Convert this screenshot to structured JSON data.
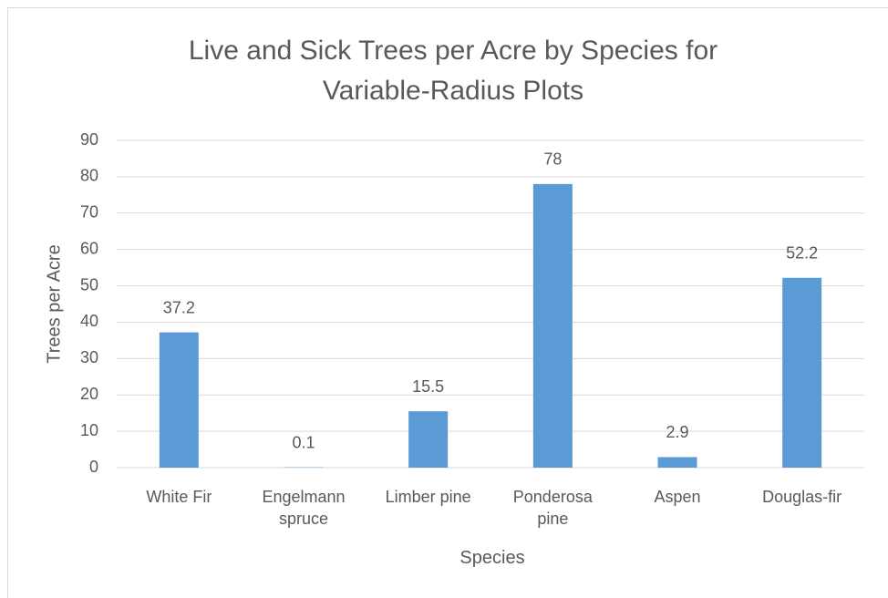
{
  "chart_data": {
    "type": "bar",
    "title": "Live and Sick Trees per Acre by Species for Variable-Radius Plots",
    "x_label": "Species",
    "y_label": "Trees per Acre",
    "categories": [
      "White Fir",
      "Engelmann spruce",
      "Limber pine",
      "Ponderosa pine",
      "Aspen",
      "Douglas-fir"
    ],
    "values": [
      37.2,
      0.1,
      15.5,
      78,
      2.9,
      52.2
    ],
    "color": "#5b9bd5",
    "ylim": [
      0,
      90
    ],
    "yticks": [
      0,
      10,
      20,
      30,
      40,
      50,
      60,
      70,
      80,
      90
    ],
    "grid": true
  }
}
